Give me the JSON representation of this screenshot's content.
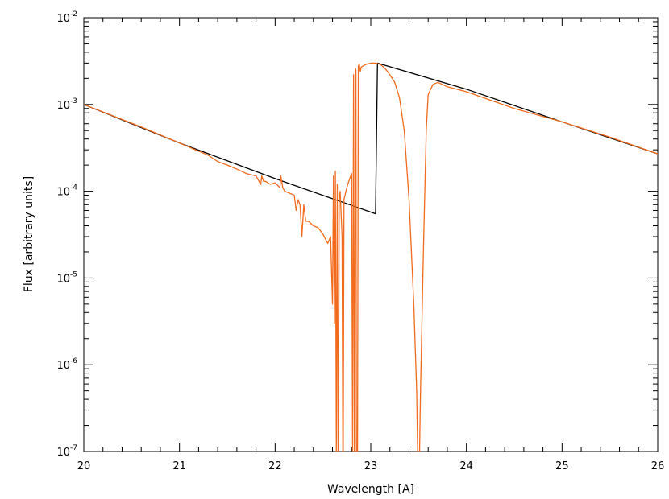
{
  "chart_data": {
    "type": "line",
    "xlabel": "Wavelength [A]",
    "ylabel": "Flux [arbitrary units]",
    "xlim": [
      20,
      26
    ],
    "ylim": [
      1e-07,
      0.01
    ],
    "yscale": "log",
    "grid": false,
    "x_ticks": [
      20,
      21,
      22,
      23,
      24,
      25,
      26
    ],
    "x_tick_labels": [
      "20",
      "21",
      "22",
      "23",
      "24",
      "25",
      "26"
    ],
    "y_ticks": [
      1e-07,
      1e-06,
      1e-05,
      0.0001,
      0.001,
      0.01
    ],
    "y_tick_labels": [
      {
        "base": "10",
        "exp": "-7"
      },
      {
        "base": "10",
        "exp": "-6"
      },
      {
        "base": "10",
        "exp": "-5"
      },
      {
        "base": "10",
        "exp": "-4"
      },
      {
        "base": "10",
        "exp": "-3"
      },
      {
        "base": "10",
        "exp": "-2"
      }
    ],
    "series": [
      {
        "color": "#000000",
        "x": [
          20.0,
          21.0,
          22.0,
          23.05,
          23.07,
          24.0,
          25.0,
          26.0
        ],
        "y": [
          0.001,
          0.00036,
          0.00014,
          5.5e-05,
          0.003,
          0.0015,
          0.00063,
          0.00027
        ]
      },
      {
        "color": "#f26b1d",
        "x": [
          20.0,
          20.6,
          21.0,
          21.3,
          21.4,
          21.5,
          21.6,
          21.7,
          21.8,
          21.85,
          21.86,
          21.88,
          21.9,
          21.95,
          22.0,
          22.05,
          22.06,
          22.08,
          22.1,
          22.15,
          22.2,
          22.22,
          22.24,
          22.26,
          22.28,
          22.3,
          22.32,
          22.35,
          22.4,
          22.45,
          22.5,
          22.55,
          22.58,
          22.6,
          22.61,
          22.62,
          22.63,
          22.64,
          22.65,
          22.66,
          22.67,
          22.68,
          22.7,
          22.71,
          22.72,
          22.74,
          22.76,
          22.78,
          22.8,
          22.81,
          22.82,
          22.83,
          22.84,
          22.845,
          22.85,
          22.86,
          22.87,
          22.88,
          22.89,
          22.9,
          22.95,
          23.0,
          23.05,
          23.1,
          23.15,
          23.2,
          23.25,
          23.3,
          23.35,
          23.4,
          23.45,
          23.48,
          23.5,
          23.52,
          23.55,
          23.58,
          23.6,
          23.65,
          23.7,
          23.75,
          23.8,
          24.0,
          24.5,
          25.0,
          25.5,
          26.0
        ],
        "y": [
          0.001,
          0.00055,
          0.00036,
          0.00026,
          0.00022,
          0.0002,
          0.00018,
          0.00016,
          0.00015,
          0.00012,
          0.00015,
          0.00013,
          0.00013,
          0.00012,
          0.000125,
          0.00011,
          0.00015,
          0.00011,
          0.0001,
          9.5e-05,
          9e-05,
          6e-05,
          8e-05,
          7e-05,
          3e-05,
          7e-05,
          4.5e-05,
          4.5e-05,
          4e-05,
          3.8e-05,
          3.2e-05,
          2.5e-05,
          3e-05,
          5e-06,
          0.00015,
          3e-06,
          0.00017,
          1e-07,
          0.00012,
          2e-08,
          8e-05,
          0.0001,
          3e-05,
          2e-08,
          8e-05,
          0.0001,
          0.00012,
          0.00014,
          0.00016,
          1e-07,
          0.0022,
          2e-08,
          0.0026,
          0.0025,
          1e-07,
          2e-08,
          0.0028,
          0.0029,
          0.0024,
          0.0027,
          0.0029,
          0.003,
          0.003,
          0.0029,
          0.0026,
          0.0022,
          0.0018,
          0.0012,
          0.0005,
          8e-05,
          5e-06,
          5e-07,
          2e-08,
          5e-07,
          2e-05,
          0.0005,
          0.0013,
          0.0017,
          0.0018,
          0.0017,
          0.0016,
          0.0014,
          0.0009,
          0.00063,
          0.00042,
          0.00027
        ]
      }
    ]
  }
}
